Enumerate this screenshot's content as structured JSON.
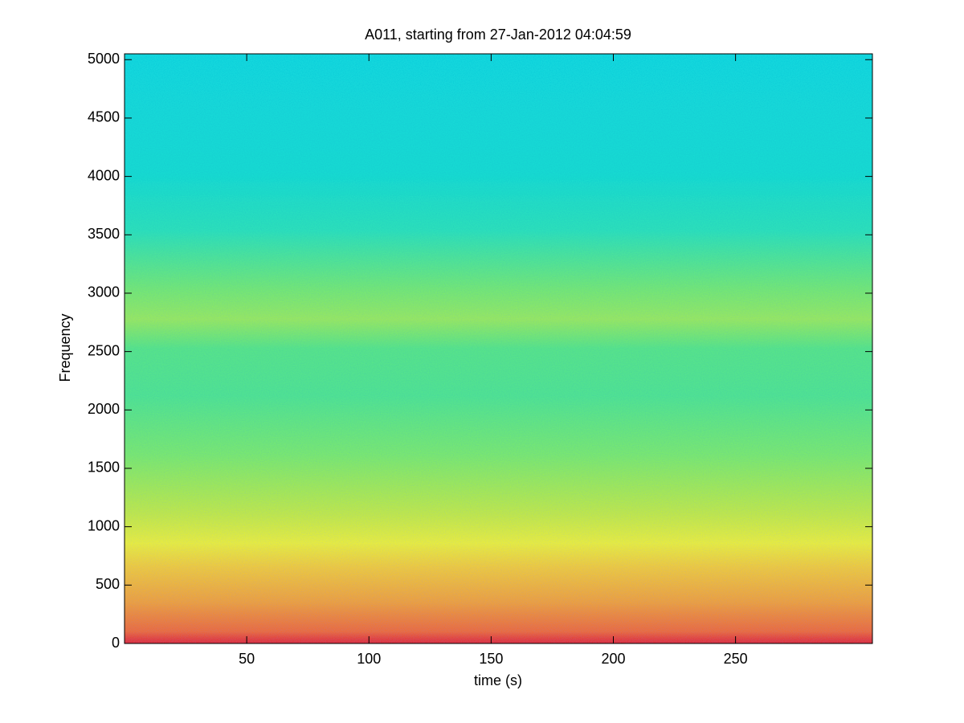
{
  "chart_data": {
    "type": "spectrogram",
    "title": "A011, starting from 27-Jan-2012 04:04:59",
    "x_label": "time (s)",
    "y_label": "Frequency",
    "xlim": [
      0,
      306
    ],
    "ylim": [
      0,
      5050
    ],
    "xticks": [
      50,
      100,
      150,
      200,
      250
    ],
    "yticks": [
      0,
      500,
      1000,
      1500,
      2000,
      2500,
      3000,
      3500,
      4000,
      4500,
      5000
    ]
  }
}
